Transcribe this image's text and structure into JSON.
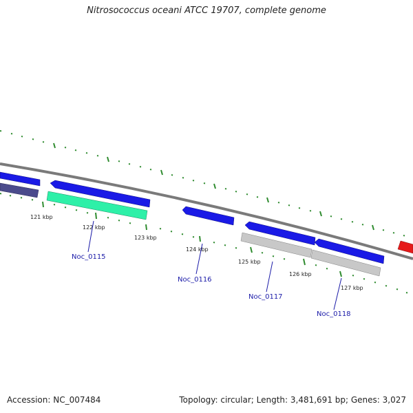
{
  "title": "Nitrosococcus oceani ATCC 19707, complete genome",
  "footer": {
    "accession": "Accession: NC_007484",
    "summary": "Topology: circular; Length: 3,481,691 bp; Genes: 3,027"
  },
  "colors": {
    "backbone": "#808080",
    "cds_forward": "#1a1ae6",
    "cds_reverse": "#1a1ae6",
    "gene_dark": "#4b4b8c",
    "gene_teal": "#2ef0a8",
    "pseudo_grey": "#c0c0c0",
    "highlight_red": "#e61a1a",
    "tick": "#2e8b2e",
    "label_blue": "#1a1aa8"
  },
  "ticks": [
    {
      "label": "121 kbp"
    },
    {
      "label": "122 kbp"
    },
    {
      "label": "123 kbp"
    },
    {
      "label": "124 kbp"
    },
    {
      "label": "125 kbp"
    },
    {
      "label": "126 kbp"
    },
    {
      "label": "127 kbp"
    }
  ],
  "gene_labels": [
    {
      "name": "Noc_0115"
    },
    {
      "name": "Noc_0116"
    },
    {
      "name": "Noc_0117"
    },
    {
      "name": "Noc_0118"
    }
  ]
}
